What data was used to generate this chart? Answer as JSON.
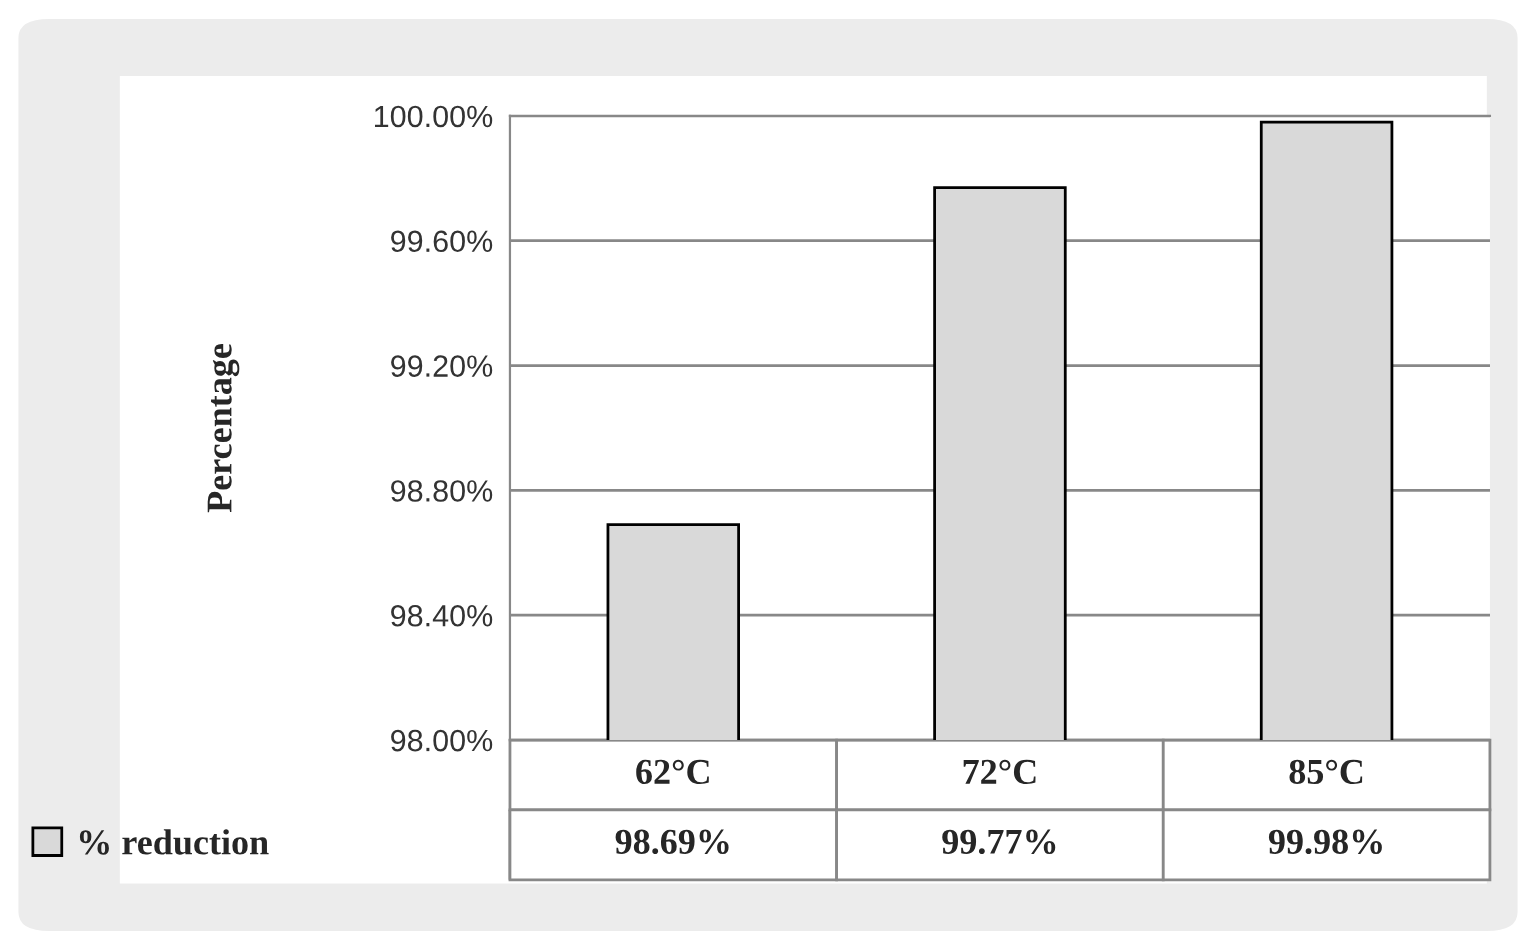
{
  "chart_data": {
    "type": "bar",
    "ylabel": "Percentage",
    "categories": [
      "62°C",
      "72°C",
      "85°C"
    ],
    "series": [
      {
        "name": "% reduction",
        "color": "#d9d9d9",
        "values": [
          98.69,
          99.77,
          99.98
        ],
        "value_labels": [
          "98.69%",
          "99.77%",
          "99.98%"
        ]
      }
    ],
    "ylim": [
      98.0,
      100.0
    ],
    "yticks": [
      {
        "value": 98.0,
        "label": "98.00%"
      },
      {
        "value": 98.4,
        "label": "98.40%"
      },
      {
        "value": 98.8,
        "label": "98.80%"
      },
      {
        "value": 99.2,
        "label": "99.20%"
      },
      {
        "value": 99.6,
        "label": "99.60%"
      },
      {
        "value": 100.0,
        "label": "100.00%"
      }
    ],
    "grid": "y",
    "legend": "bottom"
  }
}
